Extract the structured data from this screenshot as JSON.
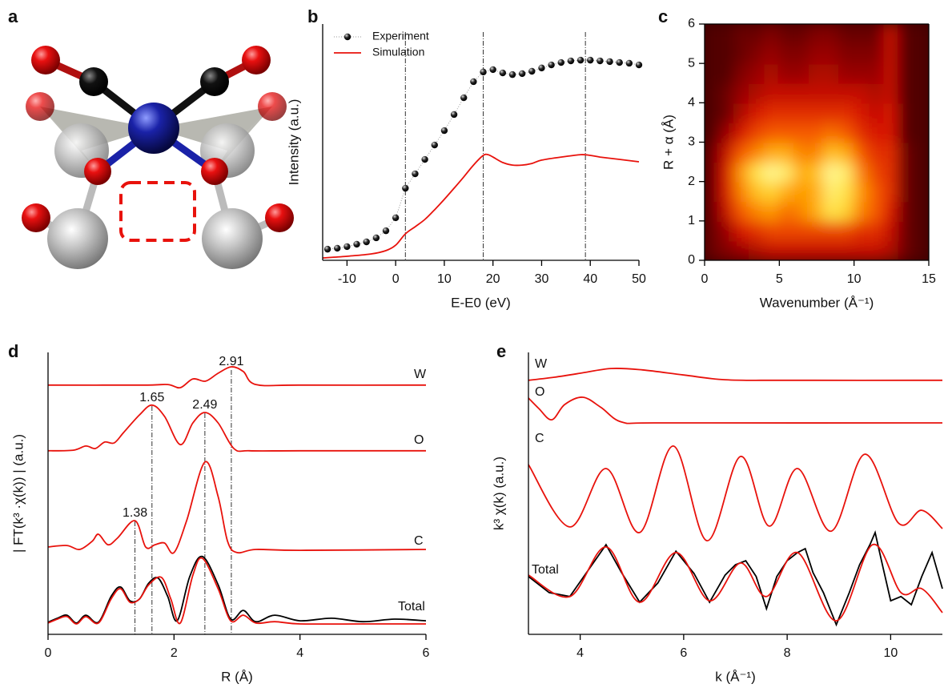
{
  "structure": {
    "panel": "a"
  },
  "chart_data": [
    {
      "panel": "b",
      "type": "line",
      "xlabel": "E-E0 (eV)",
      "ylabel": "Intensity (a.u.)",
      "xlim": [
        -15,
        50
      ],
      "xticks": [
        -10,
        0,
        10,
        20,
        30,
        40,
        50
      ],
      "ylim": [
        0,
        1
      ],
      "legend": "upper left",
      "vlines": [
        2,
        18,
        39
      ],
      "series": [
        {
          "name": "Experiment",
          "color": "#000000",
          "marker": "dot",
          "x": [
            -14,
            -12,
            -10,
            -8,
            -6,
            -4,
            -2,
            0,
            2,
            4,
            6,
            8,
            10,
            12,
            14,
            16,
            18,
            20,
            22,
            24,
            26,
            28,
            30,
            32,
            34,
            36,
            38,
            40,
            42,
            44,
            46,
            48,
            50
          ],
          "values": [
            0.047,
            0.051,
            0.058,
            0.068,
            0.078,
            0.095,
            0.125,
            0.18,
            0.305,
            0.366,
            0.427,
            0.488,
            0.549,
            0.617,
            0.688,
            0.756,
            0.797,
            0.807,
            0.793,
            0.786,
            0.79,
            0.8,
            0.814,
            0.827,
            0.837,
            0.844,
            0.847,
            0.847,
            0.844,
            0.841,
            0.837,
            0.834,
            0.827
          ]
        },
        {
          "name": "Simulation",
          "color": "#e8120c",
          "x": [
            -15,
            -10,
            -5,
            -2,
            0,
            2,
            4,
            6,
            8,
            10,
            12,
            14,
            16,
            18,
            19,
            20,
            22,
            24,
            26,
            28,
            30,
            34,
            38,
            40,
            42,
            46,
            50
          ],
          "values": [
            0.01,
            0.017,
            0.027,
            0.041,
            0.064,
            0.112,
            0.142,
            0.173,
            0.214,
            0.258,
            0.305,
            0.353,
            0.403,
            0.444,
            0.447,
            0.437,
            0.414,
            0.403,
            0.403,
            0.41,
            0.424,
            0.437,
            0.447,
            0.444,
            0.437,
            0.427,
            0.417
          ]
        }
      ]
    },
    {
      "panel": "c",
      "type": "heatmap",
      "xlabel": "Wavenumber (Å⁻¹)",
      "ylabel": "R + α (Å)",
      "xlim": [
        0,
        15
      ],
      "xticks": [
        0,
        5,
        10,
        15
      ],
      "ylim": [
        0,
        6
      ],
      "yticks": [
        0,
        1,
        2,
        3,
        4,
        5,
        6
      ],
      "colormap": [
        "#3a0000",
        "#8a0000",
        "#d41000",
        "#f55a00",
        "#ffa000",
        "#ffe040",
        "#ffffb0"
      ],
      "x": [
        0.5,
        1.5,
        2.5,
        3.5,
        4.5,
        5.5,
        6.5,
        7.5,
        8.5,
        9.5,
        10.5,
        11.5,
        12.5,
        13.5,
        14.5
      ],
      "y": [
        0.25,
        0.75,
        1.25,
        1.75,
        2.25,
        2.75,
        3.25,
        3.75,
        4.25,
        4.75,
        5.25,
        5.75
      ],
      "z": [
        [
          0.1,
          0.15,
          0.2,
          0.25,
          0.3,
          0.3,
          0.3,
          0.3,
          0.3,
          0.3,
          0.3,
          0.3,
          0.25,
          0.1,
          0.05
        ],
        [
          0.1,
          0.2,
          0.35,
          0.4,
          0.45,
          0.45,
          0.45,
          0.45,
          0.45,
          0.45,
          0.4,
          0.4,
          0.3,
          0.1,
          0.05
        ],
        [
          0.1,
          0.3,
          0.5,
          0.6,
          0.65,
          0.55,
          0.6,
          0.7,
          0.85,
          0.8,
          0.6,
          0.5,
          0.35,
          0.1,
          0.05
        ],
        [
          0.1,
          0.35,
          0.6,
          0.75,
          0.8,
          0.7,
          0.65,
          0.7,
          0.9,
          0.85,
          0.65,
          0.5,
          0.4,
          0.1,
          0.05
        ],
        [
          0.1,
          0.35,
          0.65,
          0.85,
          0.95,
          0.9,
          0.7,
          0.75,
          0.95,
          0.9,
          0.6,
          0.45,
          0.4,
          0.1,
          0.05
        ],
        [
          0.1,
          0.3,
          0.5,
          0.6,
          0.7,
          0.7,
          0.6,
          0.6,
          0.75,
          0.7,
          0.5,
          0.4,
          0.4,
          0.1,
          0.05
        ],
        [
          0.05,
          0.2,
          0.35,
          0.45,
          0.5,
          0.5,
          0.5,
          0.5,
          0.55,
          0.5,
          0.4,
          0.35,
          0.35,
          0.05,
          0.05
        ],
        [
          0.05,
          0.1,
          0.25,
          0.35,
          0.4,
          0.4,
          0.4,
          0.4,
          0.4,
          0.4,
          0.35,
          0.3,
          0.35,
          0.05,
          0.05
        ],
        [
          0.05,
          0.1,
          0.2,
          0.25,
          0.3,
          0.3,
          0.3,
          0.3,
          0.3,
          0.3,
          0.3,
          0.25,
          0.3,
          0.05,
          0.05
        ],
        [
          0.05,
          0.05,
          0.15,
          0.2,
          0.25,
          0.2,
          0.2,
          0.25,
          0.25,
          0.2,
          0.2,
          0.2,
          0.3,
          0.05,
          0.05
        ],
        [
          0.05,
          0.05,
          0.1,
          0.15,
          0.2,
          0.15,
          0.15,
          0.2,
          0.2,
          0.15,
          0.15,
          0.15,
          0.3,
          0.05,
          0.05
        ],
        [
          0.05,
          0.05,
          0.1,
          0.1,
          0.15,
          0.1,
          0.1,
          0.15,
          0.15,
          0.1,
          0.1,
          0.1,
          0.3,
          0.05,
          0.05
        ]
      ]
    },
    {
      "panel": "d",
      "type": "line",
      "xlabel": "R (Å)",
      "ylabel": "| FT(k³ ·χ(k)) | (a.u.)",
      "xlim": [
        0,
        6
      ],
      "xticks": [
        0,
        2,
        4,
        6
      ],
      "ylim": [
        0,
        10
      ],
      "annotations": [
        2.91,
        1.65,
        2.49,
        1.38
      ],
      "series": [
        {
          "name": "W",
          "color": "#e8120c",
          "x": [
            0,
            1.5,
            1.9,
            2.1,
            2.3,
            2.5,
            2.7,
            2.91,
            3.1,
            3.3,
            4,
            6
          ],
          "values": [
            8.84,
            8.84,
            8.86,
            8.75,
            9.06,
            8.98,
            9.26,
            9.49,
            9.32,
            8.86,
            8.84,
            8.84
          ]
        },
        {
          "name": "O",
          "color": "#e8120c",
          "x": [
            0,
            0.4,
            0.6,
            0.75,
            0.9,
            1.05,
            1.2,
            1.45,
            1.65,
            1.85,
            2.1,
            2.3,
            2.49,
            2.7,
            2.95,
            3.2,
            4,
            6
          ],
          "values": [
            6.51,
            6.53,
            6.68,
            6.59,
            6.82,
            6.79,
            7.16,
            7.78,
            8.13,
            7.73,
            6.73,
            7.5,
            7.87,
            7.5,
            6.59,
            6.51,
            6.51,
            6.51
          ]
        },
        {
          "name": "C",
          "color": "#e8120c",
          "x": [
            0,
            0.3,
            0.5,
            0.7,
            0.8,
            0.95,
            1.1,
            1.38,
            1.55,
            1.7,
            1.85,
            2.0,
            2.2,
            2.49,
            2.7,
            2.85,
            3.0,
            3.3,
            4,
            6
          ],
          "values": [
            3.1,
            3.15,
            3.01,
            3.3,
            3.55,
            3.18,
            3.41,
            4.03,
            3.1,
            3.18,
            3.24,
            2.9,
            4.03,
            6.11,
            4.89,
            3.3,
            2.9,
            3.01,
            2.98,
            3.01
          ]
        },
        {
          "name": "Total",
          "color": "#000000",
          "x": [
            0,
            0.15,
            0.3,
            0.45,
            0.6,
            0.8,
            1.0,
            1.15,
            1.3,
            1.45,
            1.6,
            1.75,
            1.9,
            2.05,
            2.25,
            2.45,
            2.7,
            2.9,
            3.1,
            3.3,
            3.6,
            4.0,
            4.5,
            5.0,
            5.5,
            6.0
          ],
          "values": [
            0.43,
            0.57,
            0.68,
            0.4,
            0.68,
            0.43,
            1.34,
            1.68,
            1.19,
            1.25,
            1.82,
            1.99,
            1.34,
            0.48,
            2.05,
            2.76,
            1.76,
            0.54,
            0.85,
            0.45,
            0.68,
            0.48,
            0.57,
            0.45,
            0.54,
            0.48
          ]
        },
        {
          "color": "#e8120c",
          "x": [
            0,
            0.15,
            0.3,
            0.45,
            0.6,
            0.8,
            1.0,
            1.15,
            1.3,
            1.45,
            1.6,
            1.8,
            1.95,
            2.1,
            2.3,
            2.45,
            2.7,
            2.9,
            3.1,
            3.3,
            3.6,
            4.0,
            5.0,
            6.0
          ],
          "values": [
            0.4,
            0.54,
            0.63,
            0.37,
            0.63,
            0.4,
            1.25,
            1.62,
            1.14,
            1.25,
            1.76,
            2.02,
            1.25,
            0.4,
            2.1,
            2.7,
            1.62,
            0.48,
            0.68,
            0.4,
            0.45,
            0.37,
            0.37,
            0.37
          ]
        }
      ]
    },
    {
      "panel": "e",
      "type": "line",
      "xlabel": "k (Å⁻¹)",
      "ylabel": "k³ χ(k) (a.u.)",
      "xlim": [
        3,
        11
      ],
      "xticks": [
        4,
        6,
        8,
        10
      ],
      "ylim": [
        0,
        10
      ],
      "series": [
        {
          "name": "W",
          "color": "#e8120c",
          "x": [
            3,
            3.5,
            4,
            4.6,
            5.2,
            6,
            6.8,
            8,
            11
          ],
          "values": [
            9.01,
            9.12,
            9.26,
            9.43,
            9.38,
            9.2,
            9.03,
            9.01,
            9.01
          ]
        },
        {
          "name": "O",
          "color": "#e8120c",
          "x": [
            3,
            3.2,
            3.45,
            3.7,
            4.05,
            4.4,
            4.8,
            5.5,
            11
          ],
          "values": [
            8.38,
            8.01,
            7.61,
            8.15,
            8.41,
            8.05,
            7.53,
            7.5,
            7.5
          ]
        },
        {
          "name": "C",
          "color": "#e8120c",
          "x": [
            3,
            3.8,
            4.5,
            5.15,
            5.8,
            6.45,
            7.1,
            7.65,
            8.2,
            8.85,
            9.5,
            10.15,
            10.6,
            11
          ],
          "values": [
            6.02,
            3.81,
            5.88,
            3.61,
            6.68,
            3.32,
            6.31,
            3.84,
            5.88,
            3.66,
            6.39,
            3.95,
            4.4,
            3.75
          ]
        },
        {
          "name": "Total",
          "color": "#000000",
          "smooth": false,
          "x": [
            3,
            3.4,
            3.8,
            4.2,
            4.5,
            4.8,
            5.15,
            5.5,
            5.85,
            6.2,
            6.5,
            6.8,
            7.0,
            7.2,
            7.4,
            7.6,
            7.8,
            8.0,
            8.2,
            8.35,
            8.5,
            8.7,
            8.95,
            9.2,
            9.4,
            9.6,
            9.7,
            9.85,
            10.0,
            10.2,
            10.4,
            10.6,
            10.8,
            11
          ],
          "values": [
            2.05,
            1.48,
            1.34,
            2.39,
            3.18,
            2.19,
            1.14,
            1.82,
            2.95,
            2.16,
            1.14,
            2.1,
            2.47,
            2.61,
            2.05,
            0.91,
            2.05,
            2.61,
            2.9,
            3.04,
            2.19,
            1.48,
            0.34,
            1.48,
            2.47,
            3.18,
            3.61,
            2.39,
            1.19,
            1.34,
            1.05,
            2.05,
            2.9,
            1.62
          ]
        },
        {
          "color": "#e8120c",
          "x": [
            3,
            3.8,
            4.5,
            5.15,
            5.85,
            6.5,
            7.1,
            7.6,
            8.2,
            8.95,
            9.65,
            10.2,
            10.6,
            11
          ],
          "values": [
            2.1,
            1.34,
            3.1,
            1.14,
            2.9,
            1.19,
            2.53,
            1.34,
            2.9,
            0.48,
            3.18,
            1.48,
            1.62,
            0.77
          ]
        }
      ]
    }
  ]
}
